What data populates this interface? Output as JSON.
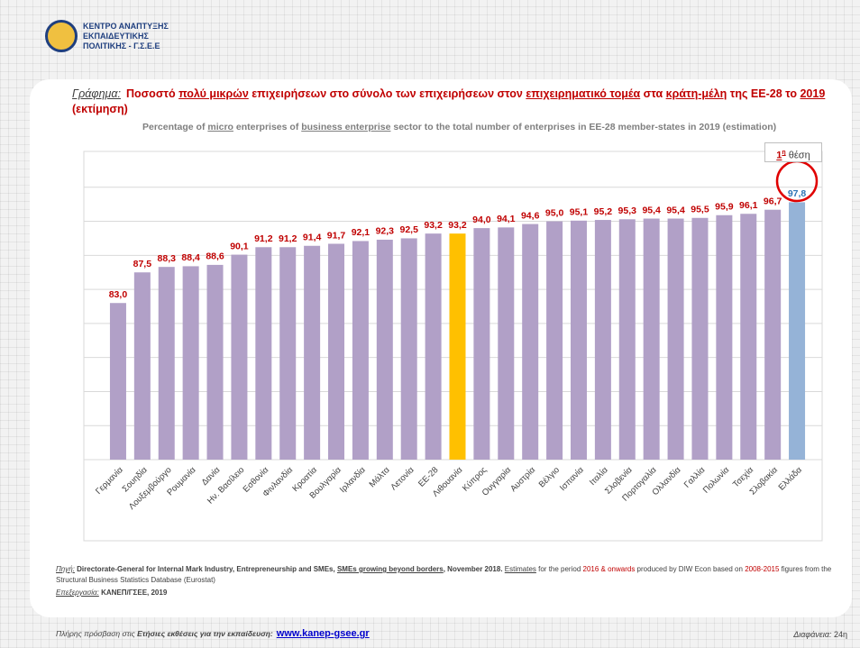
{
  "header": {
    "logo_lines": [
      "ΚΕΝΤΡΟ ΑΝΑΠΤΥΞΗΣ",
      "ΕΚΠΑΙΔΕΥΤΙΚΗΣ",
      "ΠΟΛΙΤΙΚΗΣ - Γ.Σ.Ε.Ε"
    ]
  },
  "chart_data": {
    "type": "bar",
    "title_label": "Γράφημα:",
    "title_parts": [
      "Ποσοστό ",
      "πολύ μικρών",
      " επιχειρήσεων στο σύνολο των επιχειρήσεων στον ",
      "επιχειρηματικό τομέα",
      " στα ",
      "κράτη-μέλη",
      " της ΕΕ-28 το ",
      "2019",
      " (εκτίμηση)"
    ],
    "subtitle_parts": [
      "Percentage of ",
      "micro",
      " enterprises of ",
      "business enterprise",
      " sector to the total number of enterprises in EE-28 member-states in 2019 (estimation)"
    ],
    "badge": {
      "rank": "1",
      "suffix": "η",
      "text": "θέση"
    },
    "categories": [
      "Γερμανία",
      "Σουηδία",
      "Λουξεμβούργο",
      "Ρουμανία",
      "Δανία",
      "Ην. Βασίλειο",
      "Εσθονία",
      "Φινλανδία",
      "Κροατία",
      "Βουλγαρία",
      "Ιρλανδία",
      "Μάλτα",
      "Λετονία",
      "ΕΕ-28",
      "Λιθουανία",
      "Κύπρος",
      "Ουγγαρία",
      "Αυστρία",
      "Βέλγιο",
      "Ισπανία",
      "Ιταλία",
      "Σλοβενία",
      "Πορτογαλία",
      "Ολλανδία",
      "Γαλλία",
      "Πολωνία",
      "Τσεχία",
      "Σλοβακία",
      "Ελλάδα"
    ],
    "values": [
      83.0,
      87.5,
      88.3,
      88.4,
      88.6,
      90.1,
      91.2,
      91.2,
      91.4,
      91.7,
      92.1,
      92.3,
      92.5,
      93.2,
      93.2,
      94.0,
      94.1,
      94.6,
      95.0,
      95.1,
      95.2,
      95.3,
      95.4,
      95.4,
      95.5,
      95.9,
      96.1,
      96.7,
      97.8
    ],
    "value_labels": [
      "83,0",
      "87,5",
      "88,3",
      "88,4",
      "88,6",
      "90,1",
      "91,2",
      "91,2",
      "91,4",
      "91,7",
      "92,1",
      "92,3",
      "92,5",
      "93,2",
      "93,2",
      "94,0",
      "94,1",
      "94,6",
      "95,0",
      "95,1",
      "95,2",
      "95,3",
      "95,4",
      "95,4",
      "95,5",
      "95,9",
      "96,1",
      "96,7",
      "97,8"
    ],
    "colors": [
      "#b1a0c7",
      "#b1a0c7",
      "#b1a0c7",
      "#b1a0c7",
      "#b1a0c7",
      "#b1a0c7",
      "#b1a0c7",
      "#b1a0c7",
      "#b1a0c7",
      "#b1a0c7",
      "#b1a0c7",
      "#b1a0c7",
      "#b1a0c7",
      "#b1a0c7",
      "#ffc000",
      "#b1a0c7",
      "#b1a0c7",
      "#b1a0c7",
      "#b1a0c7",
      "#b1a0c7",
      "#b1a0c7",
      "#b1a0c7",
      "#b1a0c7",
      "#b1a0c7",
      "#b1a0c7",
      "#b1a0c7",
      "#b1a0c7",
      "#b1a0c7",
      "#95b3d7"
    ],
    "label_colors": [
      "#c00000",
      "#c00000",
      "#c00000",
      "#c00000",
      "#c00000",
      "#c00000",
      "#c00000",
      "#c00000",
      "#c00000",
      "#c00000",
      "#c00000",
      "#c00000",
      "#c00000",
      "#c00000",
      "#c00000",
      "#c00000",
      "#c00000",
      "#c00000",
      "#c00000",
      "#c00000",
      "#c00000",
      "#c00000",
      "#c00000",
      "#c00000",
      "#c00000",
      "#c00000",
      "#c00000",
      "#c00000",
      "#2e75b6"
    ],
    "ylim": [
      60,
      105
    ],
    "yticks": [
      60,
      65,
      70,
      75,
      80,
      85,
      90,
      95,
      100
    ],
    "grid": true
  },
  "footer": {
    "source_label": "Πηγή:",
    "source_parts": [
      " Directorate-General for Internal Mark Industry, Entrepreneurship and SMEs, ",
      "SMEs growing beyond borders",
      ", November 2018. ",
      "Estimates",
      " for the period ",
      "2016 & onwards",
      " produced by DIW Econ based on ",
      "2008-2015",
      " figures from the Structural Business Statistics Database (Eurostat)"
    ],
    "processing_label": "Επεξεργασία:",
    "processing": "ΚΑΝΕΠ/ΓΣΕΕ, 2019",
    "access_text": "Πλήρης πρόσβαση στις ",
    "access_bold": "Ετήσιες εκθέσεις για την εκπαίδευση:",
    "link": "www.kanep-gsee.gr",
    "slide_label": "Διαφάνεια:",
    "slide_number": "24η"
  }
}
